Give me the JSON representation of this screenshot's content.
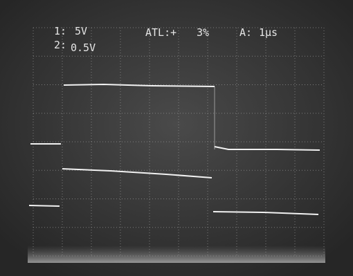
{
  "readout": {
    "ch1_label": "1:",
    "ch1_scale": "5V",
    "ch2_label": "2:",
    "ch2_scale": "0.5V",
    "trigger": "ATL:+",
    "trigger_level": "3%",
    "timebase_label": "A:",
    "timebase": "1µs"
  }
}
